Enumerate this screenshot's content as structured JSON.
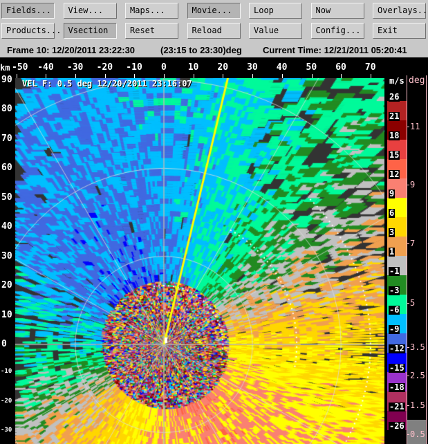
{
  "toolbar": {
    "row1": [
      "Fields...",
      "View...",
      "Maps...",
      "Movie...",
      "Loop",
      "Now",
      "Overlays..."
    ],
    "row2": [
      "Products...",
      "Vsection",
      "Reset",
      "Reload",
      "Value",
      "Config...",
      "Exit"
    ],
    "pressed": [
      "Fields...",
      "Movie...",
      "Vsection"
    ]
  },
  "status": {
    "frame": "Frame 10: 12/20/2011 23:22:30",
    "range": "(23:15 to 23:30)deg",
    "current": "Current Time: 12/21/2011 05:20:41"
  },
  "plot": {
    "x_unit": "km",
    "x_ticks": [
      "-50",
      "-40",
      "-30",
      "-20",
      "-10",
      "0",
      "10",
      "20",
      "30",
      "40",
      "50",
      "60",
      "70"
    ],
    "y_ticks": [
      "90",
      "80",
      "70",
      "60",
      "50",
      "40",
      "30",
      "20",
      "10",
      "0",
      "-10",
      "-20",
      "-30"
    ],
    "field_label": "VEL F: 0.5 deg 12/20/2011 23:16:07"
  },
  "colorbar": {
    "unit": "m/s",
    "labels": [
      "26",
      "21",
      "18",
      "15",
      "12",
      "9",
      "6",
      "3",
      "1",
      "-1",
      "-3",
      "-6",
      "-9",
      "-12",
      "-15",
      "-18",
      "-21",
      "-26"
    ],
    "colors": [
      "#b22222",
      "#8b0000",
      "#e84040",
      "#ff6347",
      "#fa8072",
      "#ffff00",
      "#ffd700",
      "#f0a050",
      "#c0c0c0",
      "#228b22",
      "#00fa9a",
      "#00bfff",
      "#4169e1",
      "#0000ff",
      "#9932cc",
      "#b03060",
      "#800050"
    ]
  },
  "elevation_bar": {
    "unit": "deg",
    "labels": [
      "11",
      "9",
      "7",
      "5",
      "3.5",
      "2.5",
      "1.5",
      "0.5"
    ],
    "selected": "0.5"
  }
}
